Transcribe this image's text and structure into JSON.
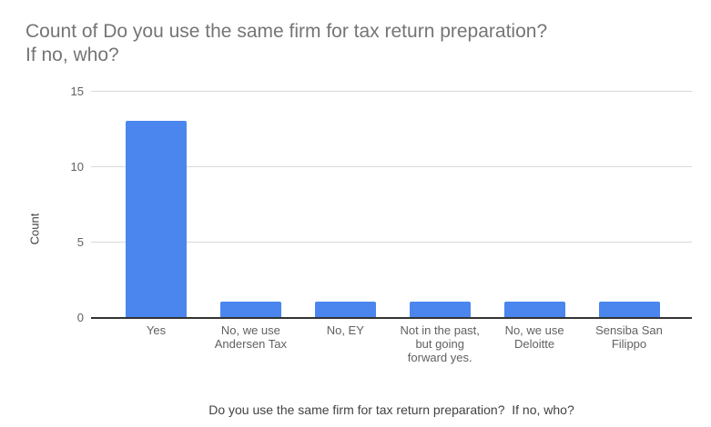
{
  "title": {
    "lines": [
      "Count of Do you use the same firm for tax return preparation?",
      "If no, who?"
    ],
    "full": "Count of Do you use the same firm for tax return preparation? If no, who?"
  },
  "chart_data": {
    "type": "bar",
    "title": "Count of Do you use the same firm for tax return preparation? If no, who?",
    "categories": [
      "Yes",
      "No, we use Andersen Tax",
      "No, EY",
      "Not in the past, but going forward yes.",
      "No, we use Deloitte",
      "Sensiba San Filippo"
    ],
    "values": [
      13,
      1,
      1,
      1,
      1,
      1
    ],
    "xlabel": "Do you use the same firm for tax return preparation?  If no, who?",
    "ylabel": "Count",
    "ylim": [
      0,
      15
    ],
    "yticks": [
      0,
      5,
      10,
      15
    ],
    "grid": true,
    "legend": "none"
  },
  "colors": {
    "bar": "#4a86ee",
    "title_text": "#757575",
    "tick_text": "#616161",
    "axis_title_text": "#424242",
    "gridline": "#d9d9d9",
    "baseline": "#333333",
    "background": "#ffffff"
  }
}
